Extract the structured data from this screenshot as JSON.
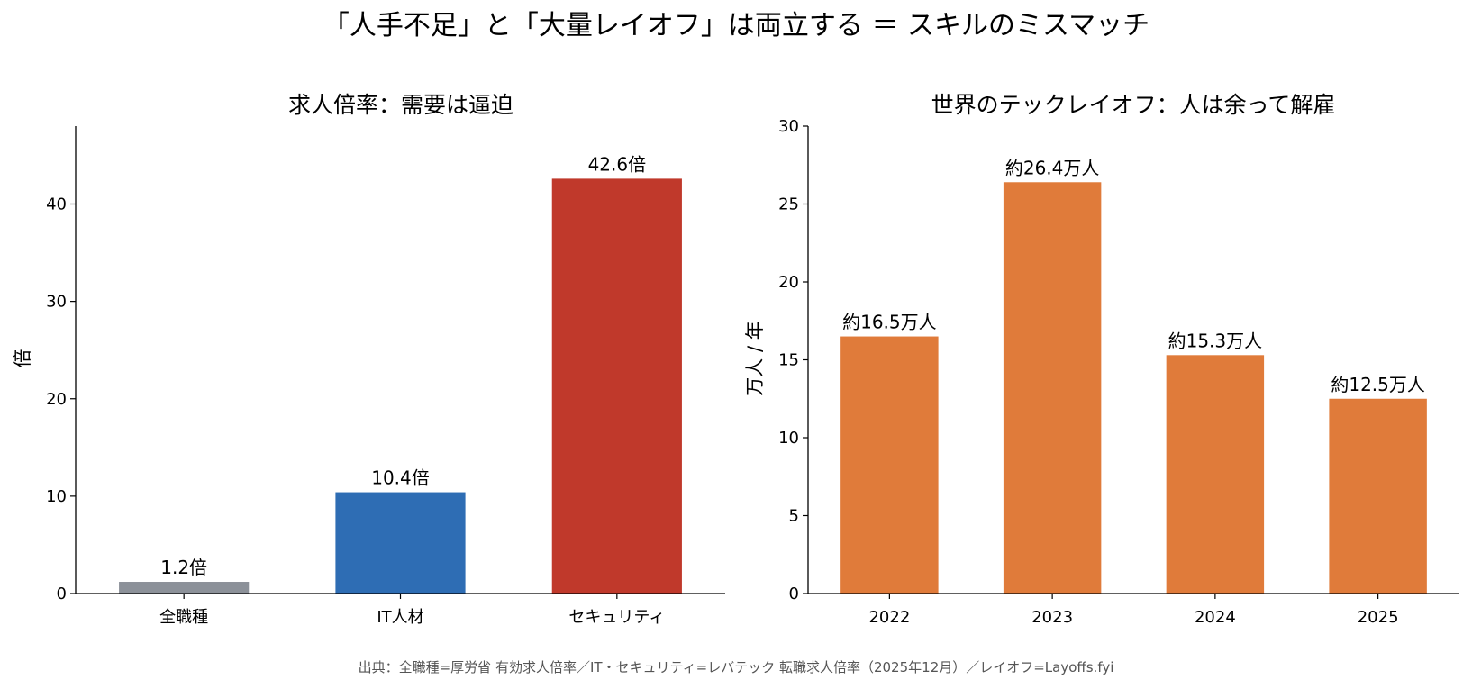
{
  "figure_title": "「人手不足」と「大量レイオフ」は両立する ＝ スキルのミスマッチ",
  "source": "出典：全職種=厚労省 有効求人倍率／IT・セキュリティ=レバテック 転職求人倍率（2025年12月）／レイオフ=Layoffs.fyi",
  "chart_data": [
    {
      "type": "bar",
      "title": "求人倍率：需要は逼迫",
      "xlabel": "",
      "ylabel": "倍",
      "categories": [
        "全職種",
        "IT人材",
        "セキュリティ"
      ],
      "values": [
        1.2,
        10.4,
        42.6
      ],
      "data_labels": [
        "1.2倍",
        "10.4倍",
        "42.6倍"
      ],
      "colors": [
        "#8c9199",
        "#2e6db4",
        "#c0392b"
      ],
      "ylim": [
        0,
        48
      ],
      "yticks": [
        0,
        10,
        20,
        30,
        40
      ],
      "grid": false
    },
    {
      "type": "bar",
      "title": "世界のテックレイオフ：人は余って解雇",
      "xlabel": "",
      "ylabel": "万人 / 年",
      "categories": [
        "2022",
        "2023",
        "2024",
        "2025"
      ],
      "values": [
        16.5,
        26.4,
        15.3,
        12.5
      ],
      "data_labels": [
        "約16.5万人",
        "約26.4万人",
        "約15.3万人",
        "約12.5万人"
      ],
      "colors": [
        "#e07b3a",
        "#e07b3a",
        "#e07b3a",
        "#e07b3a"
      ],
      "ylim": [
        0,
        30
      ],
      "yticks": [
        0,
        5,
        10,
        15,
        20,
        25,
        30
      ],
      "grid": false
    }
  ]
}
